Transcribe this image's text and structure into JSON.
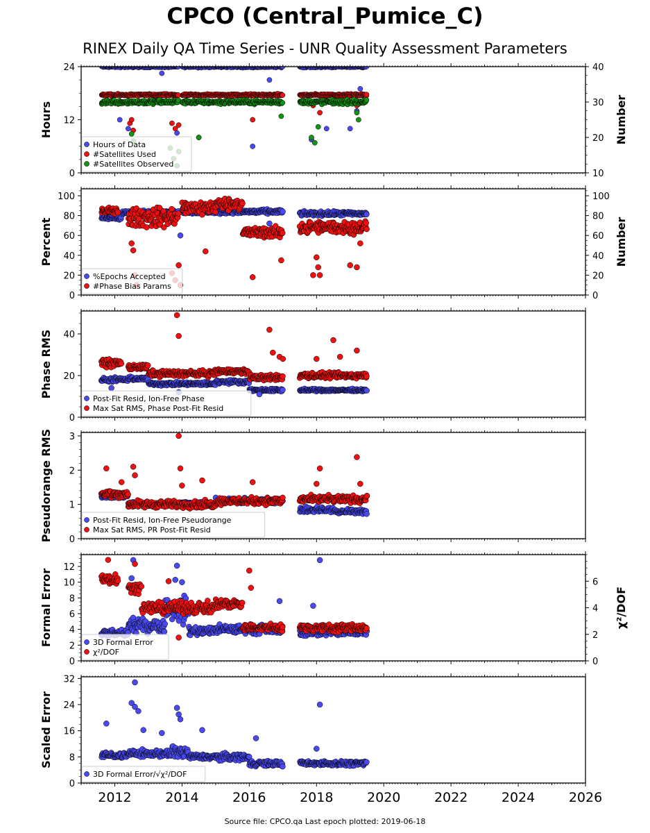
{
  "header": {
    "title": "CPCO (Central_Pumice_C)",
    "subtitle": "RINEX Daily QA Time Series - UNR Quality Assessment Parameters"
  },
  "footer": {
    "source": "Source file: CPCO.qa Last epoch plotted: 2019-06-18"
  },
  "colors": {
    "blue": "#4a4af0",
    "red": "#ee1111",
    "green": "#129612"
  },
  "chart_data": [
    {
      "type": "scatter",
      "ylabel": "Hours",
      "ylabel_right": "Number",
      "xlim": [
        2011.0,
        2026.0
      ],
      "ylim": [
        0,
        24
      ],
      "ylim_right": [
        10,
        40
      ],
      "yticks": [
        "0",
        "12",
        "24"
      ],
      "yticks_right": [
        "10",
        "20",
        "30",
        "40"
      ],
      "legend": "bottom-left",
      "series": [
        {
          "name": "Hours of Data",
          "color": "blue",
          "axis": "left",
          "segments": [
            [
              2011.6,
              2013.9,
              24,
              0.3
            ],
            [
              2014.0,
              2017.0,
              24,
              0.3
            ],
            [
              2017.5,
              2019.5,
              24,
              0.3
            ]
          ],
          "outliers": [
            [
              2012.15,
              12
            ],
            [
              2012.4,
              10
            ],
            [
              2013.4,
              22.5
            ],
            [
              2013.85,
              9
            ],
            [
              2014.5,
              8
            ],
            [
              2016.1,
              6
            ],
            [
              2016.6,
              21
            ],
            [
              2016.95,
              16
            ],
            [
              2017.85,
              7.5
            ],
            [
              2018.3,
              10
            ],
            [
              2019.0,
              10
            ],
            [
              2019.2,
              14
            ],
            [
              2019.3,
              19
            ]
          ]
        },
        {
          "name": "#Satellites Used",
          "color": "red",
          "axis": "right",
          "segments": [
            [
              2011.6,
              2013.9,
              32,
              0.4
            ],
            [
              2014.0,
              2017.0,
              32,
              0.4
            ],
            [
              2017.5,
              2019.5,
              32,
              0.4
            ]
          ],
          "outliers": [
            [
              2012.45,
              24
            ],
            [
              2012.5,
              25
            ],
            [
              2012.55,
              22
            ],
            [
              2013.7,
              24
            ],
            [
              2013.8,
              22.5
            ],
            [
              2013.9,
              23.5
            ],
            [
              2016.1,
              25
            ],
            [
              2017.9,
              29
            ],
            [
              2018.1,
              27
            ],
            [
              2019.2,
              29
            ]
          ]
        },
        {
          "name": "#Satellites Observed",
          "color": "green",
          "axis": "right",
          "segments": [
            [
              2011.6,
              2013.9,
              30,
              0.9
            ],
            [
              2014.0,
              2017.0,
              30,
              0.8
            ],
            [
              2017.5,
              2019.5,
              30,
              0.9
            ]
          ],
          "outliers": [
            [
              2012.5,
              21
            ],
            [
              2012.55,
              19
            ],
            [
              2013.65,
              17
            ],
            [
              2013.75,
              14
            ],
            [
              2013.85,
              12
            ],
            [
              2013.9,
              16
            ],
            [
              2014.5,
              20
            ],
            [
              2016.95,
              26
            ],
            [
              2017.85,
              20
            ],
            [
              2017.95,
              18.5
            ],
            [
              2018.05,
              23
            ],
            [
              2019.2,
              27
            ],
            [
              2019.25,
              25
            ]
          ]
        }
      ]
    },
    {
      "type": "scatter",
      "ylabel": "Percent",
      "ylabel_right": "Number",
      "xlim": [
        2011.0,
        2026.0
      ],
      "ylim": [
        0,
        107
      ],
      "ylim_right": [
        0,
        107
      ],
      "yticks": [
        "0",
        "20",
        "40",
        "60",
        "80",
        "100"
      ],
      "yticks_right": [
        "0",
        "20",
        "40",
        "60",
        "80",
        "100"
      ],
      "legend": "bottom-left",
      "series": [
        {
          "name": "%Epochs Accepted",
          "color": "blue",
          "axis": "left",
          "segments": [
            [
              2011.6,
              2012.2,
              78,
              3
            ],
            [
              2012.2,
              2013.9,
              83,
              3
            ],
            [
              2014.0,
              2015.5,
              84,
              3
            ],
            [
              2015.5,
              2017.0,
              84,
              3
            ],
            [
              2017.5,
              2019.5,
              82,
              3
            ]
          ],
          "outliers": [
            [
              2013.95,
              60
            ],
            [
              2016.6,
              72
            ],
            [
              2018.5,
              73
            ]
          ]
        },
        {
          "name": "#Phase Bias Params",
          "color": "red",
          "axis": "right",
          "segments": [
            [
              2011.6,
              2012.1,
              85,
              4
            ],
            [
              2012.4,
              2013.9,
              78,
              14
            ],
            [
              2014.0,
              2015.0,
              88,
              10
            ],
            [
              2015.0,
              2015.8,
              92,
              8
            ],
            [
              2015.8,
              2017.0,
              63,
              8
            ],
            [
              2017.5,
              2019.5,
              68,
              9
            ]
          ],
          "outliers": [
            [
              2012.5,
              52
            ],
            [
              2012.55,
              45
            ],
            [
              2012.6,
              20
            ],
            [
              2012.65,
              10
            ],
            [
              2013.7,
              22
            ],
            [
              2013.8,
              15
            ],
            [
              2013.9,
              30
            ],
            [
              2013.95,
              10
            ],
            [
              2014.7,
              44
            ],
            [
              2016.1,
              18
            ],
            [
              2016.95,
              35
            ],
            [
              2017.9,
              20
            ],
            [
              2018.0,
              38
            ],
            [
              2018.05,
              28
            ],
            [
              2018.1,
              20
            ],
            [
              2019.0,
              30
            ],
            [
              2019.2,
              28
            ],
            [
              2019.3,
              52
            ]
          ]
        }
      ]
    },
    {
      "type": "scatter",
      "ylabel": "Phase RMS",
      "xlim": [
        2011.0,
        2026.0
      ],
      "ylim": [
        0,
        51
      ],
      "yticks": [
        "0",
        "20",
        "40"
      ],
      "legend": "bottom-left",
      "series": [
        {
          "name": "Post-Fit Resid, Ion-Free Phase",
          "color": "blue",
          "axis": "left",
          "segments": [
            [
              2011.6,
              2012.4,
              18,
              1.5
            ],
            [
              2012.4,
              2013.0,
              18.5,
              1.2
            ],
            [
              2013.0,
              2015.0,
              16,
              1.2
            ],
            [
              2015.0,
              2016.0,
              17,
              1.2
            ],
            [
              2016.0,
              2017.0,
              13,
              1
            ],
            [
              2017.5,
              2019.5,
              13,
              0.8
            ]
          ],
          "outliers": [
            [
              2011.9,
              14
            ],
            [
              2013.9,
              12
            ],
            [
              2016.3,
              11
            ]
          ]
        },
        {
          "name": "Max Sat RMS, Phase Post-Fit Resid",
          "color": "red",
          "axis": "left",
          "segments": [
            [
              2011.6,
              2012.2,
              26,
              2.5
            ],
            [
              2012.4,
              2013.0,
              24,
              2
            ],
            [
              2013.0,
              2015.0,
              21,
              2
            ],
            [
              2015.0,
              2016.0,
              22,
              1.8
            ],
            [
              2016.0,
              2017.0,
              19,
              2
            ],
            [
              2017.5,
              2019.5,
              20,
              2
            ]
          ],
          "outliers": [
            [
              2013.85,
              49
            ],
            [
              2013.9,
              39
            ],
            [
              2016.6,
              42
            ],
            [
              2016.7,
              31
            ],
            [
              2016.9,
              29
            ],
            [
              2017.0,
              28
            ],
            [
              2018.0,
              28
            ],
            [
              2018.5,
              37
            ],
            [
              2019.2,
              32
            ],
            [
              2018.7,
              29
            ]
          ]
        }
      ]
    },
    {
      "type": "scatter",
      "ylabel": "Pseudorange RMS",
      "xlim": [
        2011.0,
        2026.0
      ],
      "ylim": [
        0,
        3.1
      ],
      "yticks": [
        "0",
        "1",
        "2",
        "3"
      ],
      "legend": "bottom-left",
      "series": [
        {
          "name": "Post-Fit Resid, Ion-Free Pseudorange",
          "color": "blue",
          "axis": "left",
          "segments": [
            [
              2011.6,
              2012.4,
              1.25,
              0.1
            ],
            [
              2012.4,
              2015.0,
              1.02,
              0.1
            ],
            [
              2015.0,
              2017.0,
              1.1,
              0.1
            ],
            [
              2017.5,
              2018.5,
              0.85,
              0.12
            ],
            [
              2018.5,
              2019.5,
              0.8,
              0.1
            ]
          ],
          "outliers": [
            [
              2019.5,
              1.25
            ]
          ]
        },
        {
          "name": "Max Sat RMS, PR Post-Fit Resid",
          "color": "red",
          "axis": "left",
          "segments": [
            [
              2011.6,
              2012.4,
              1.3,
              0.15
            ],
            [
              2012.4,
              2015.0,
              1.0,
              0.15
            ],
            [
              2015.0,
              2017.0,
              1.1,
              0.15
            ],
            [
              2017.5,
              2019.5,
              1.15,
              0.15
            ]
          ],
          "outliers": [
            [
              2011.75,
              2.05
            ],
            [
              2012.2,
              1.65
            ],
            [
              2012.55,
              2.1
            ],
            [
              2012.6,
              1.85
            ],
            [
              2013.9,
              3.0
            ],
            [
              2013.95,
              2.05
            ],
            [
              2014.0,
              1.55
            ],
            [
              2014.6,
              1.7
            ],
            [
              2016.1,
              1.65
            ],
            [
              2018.1,
              2.05
            ],
            [
              2018.0,
              1.6
            ],
            [
              2019.2,
              2.38
            ],
            [
              2019.3,
              1.6
            ]
          ]
        }
      ]
    },
    {
      "type": "scatter",
      "ylabel": "Formal Error",
      "ylabel_right": "χ²/DOF",
      "xlim": [
        2011.0,
        2026.0
      ],
      "ylim": [
        0,
        13.5
      ],
      "ylim_right": [
        0,
        8
      ],
      "yticks": [
        "0",
        "2",
        "4",
        "6",
        "8",
        "10",
        "12"
      ],
      "yticks_right": [
        "0",
        "2",
        "4",
        "6"
      ],
      "legend": "bottom-left",
      "series": [
        {
          "name": "3D Formal Error",
          "color": "blue",
          "axis": "left",
          "segments": [
            [
              2011.6,
              2012.4,
              3.5,
              0.6
            ],
            [
              2012.4,
              2013.5,
              4.5,
              1.2
            ],
            [
              2013.5,
              2014.2,
              6.5,
              2.5
            ],
            [
              2014.2,
              2015.0,
              3.8,
              0.8
            ],
            [
              2015.0,
              2017.0,
              4.0,
              0.8
            ],
            [
              2017.5,
              2019.5,
              3.6,
              0.6
            ]
          ],
          "outliers": [
            [
              2012.55,
              12.8
            ],
            [
              2012.5,
              10.5
            ],
            [
              2013.85,
              12.1
            ],
            [
              2013.8,
              10.3
            ],
            [
              2014.0,
              10.0
            ],
            [
              2016.9,
              7.6
            ],
            [
              2018.1,
              12.8
            ],
            [
              2017.9,
              7.0
            ]
          ]
        },
        {
          "name": "χ²/DOF",
          "color": "red",
          "axis": "right",
          "segments": [
            [
              2011.6,
              2012.1,
              6.2,
              0.6
            ],
            [
              2012.4,
              2012.8,
              5.5,
              0.5
            ],
            [
              2012.8,
              2015.0,
              4.0,
              0.6
            ],
            [
              2015.0,
              2015.8,
              4.3,
              0.5
            ],
            [
              2015.8,
              2017.0,
              2.5,
              0.4
            ],
            [
              2017.5,
              2019.5,
              2.5,
              0.4
            ]
          ],
          "outliers": [
            [
              2011.8,
              7.6
            ],
            [
              2012.6,
              7.3
            ],
            [
              2013.6,
              6.0
            ],
            [
              2016.0,
              6.8
            ],
            [
              2016.05,
              5.5
            ],
            [
              2013.9,
              1.75
            ]
          ]
        }
      ]
    },
    {
      "type": "scatter",
      "ylabel": "Scaled Error",
      "xlim": [
        2011.0,
        2026.0
      ],
      "ylim": [
        0,
        32.5
      ],
      "yticks": [
        "0",
        "8",
        "16",
        "24",
        "32"
      ],
      "xticks": [
        "2012",
        "2014",
        "2016",
        "2018",
        "2020",
        "2022",
        "2024",
        "2026"
      ],
      "legend": "bottom-left",
      "series": [
        {
          "name": "3D Formal Error/√χ²/DOF",
          "color": "blue",
          "axis": "left",
          "segments": [
            [
              2011.6,
              2012.4,
              8.5,
              1.2
            ],
            [
              2012.4,
              2013.7,
              9.0,
              1.5
            ],
            [
              2013.7,
              2014.2,
              9.5,
              3
            ],
            [
              2014.2,
              2015.0,
              8.0,
              1.2
            ],
            [
              2015.0,
              2016.0,
              8.0,
              1.5
            ],
            [
              2016.0,
              2017.0,
              6.0,
              1.2
            ],
            [
              2017.5,
              2019.5,
              6.0,
              1.0
            ]
          ],
          "outliers": [
            [
              2011.75,
              18.2
            ],
            [
              2012.6,
              30.8
            ],
            [
              2012.5,
              24.5
            ],
            [
              2012.6,
              23.3
            ],
            [
              2012.7,
              22.0
            ],
            [
              2012.85,
              16.2
            ],
            [
              2013.4,
              15.3
            ],
            [
              2013.85,
              23
            ],
            [
              2013.9,
              21
            ],
            [
              2013.95,
              19.5
            ],
            [
              2014.6,
              16.2
            ],
            [
              2016.2,
              13.7
            ],
            [
              2018.1,
              24
            ],
            [
              2018.0,
              10.5
            ]
          ]
        }
      ]
    }
  ]
}
